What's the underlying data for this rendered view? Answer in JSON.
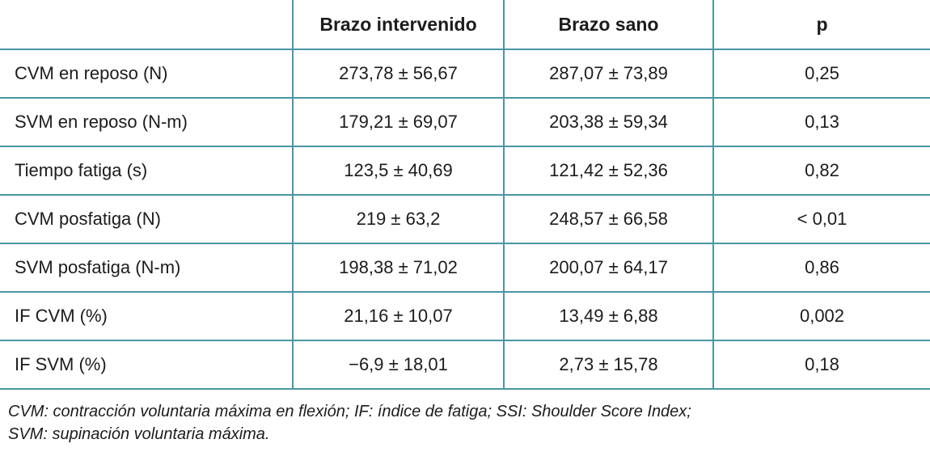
{
  "theme": {
    "border_color": "#4a96a3",
    "text_color": "#1c1c1c",
    "background_color": "#ffffff"
  },
  "table": {
    "columns": [
      "",
      "Brazo intervenido",
      "Brazo sano",
      "p"
    ],
    "rows": [
      {
        "label": "CVM en reposo (N)",
        "intervenido": "273,78 ± 56,67",
        "sano": "287,07 ± 73,89",
        "p": "0,25"
      },
      {
        "label": "SVM en reposo (N-m)",
        "intervenido": "179,21 ± 69,07",
        "sano": "203,38 ± 59,34",
        "p": "0,13"
      },
      {
        "label": "Tiempo fatiga (s)",
        "intervenido": "123,5 ± 40,69",
        "sano": "121,42 ± 52,36",
        "p": "0,82"
      },
      {
        "label": "CVM posfatiga (N)",
        "intervenido": "219 ± 63,2",
        "sano": "248,57 ± 66,58",
        "p": "< 0,01"
      },
      {
        "label": "SVM posfatiga (N-m)",
        "intervenido": "198,38 ± 71,02",
        "sano": "200,07 ± 64,17",
        "p": "0,86"
      },
      {
        "label": "IF CVM (%)",
        "intervenido": "21,16 ± 10,07",
        "sano": "13,49 ± 6,88",
        "p": "0,002"
      },
      {
        "label": "IF SVM (%)",
        "intervenido": "−6,9 ± 18,01",
        "sano": "2,73 ± 15,78",
        "p": "0,18"
      }
    ],
    "footnote_line1": "CVM: contracción voluntaria máxima en flexión; IF: índice de fatiga; SSI: Shoulder Score Index;",
    "footnote_line2": "SVM: supinación voluntaria máxima."
  }
}
